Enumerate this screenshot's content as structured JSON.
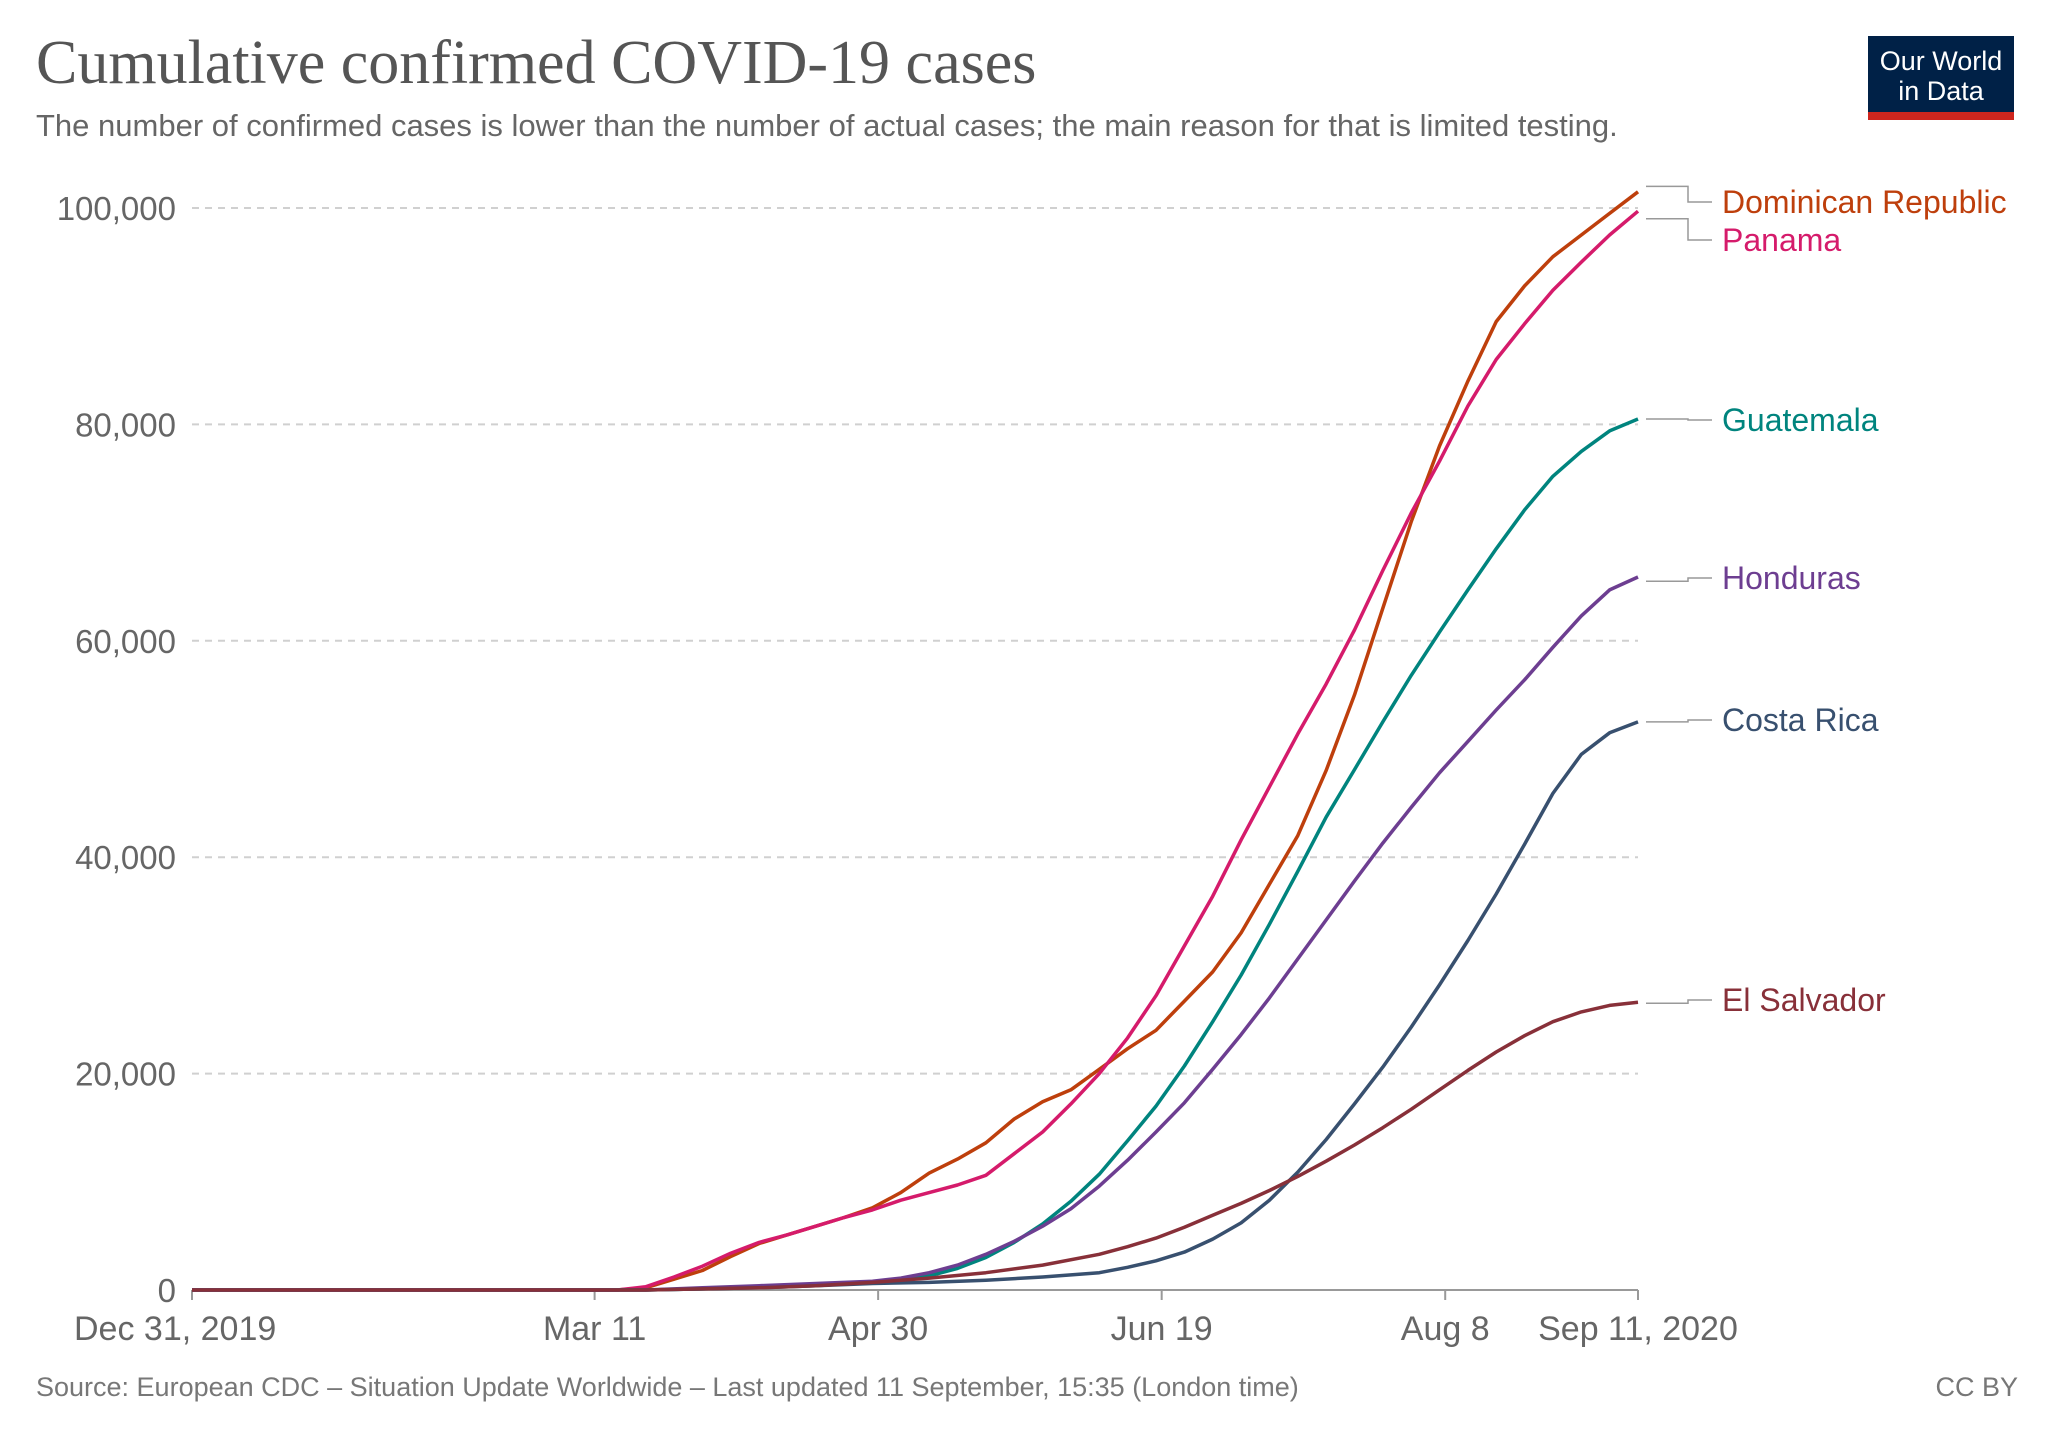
{
  "header": {
    "title": "Cumulative confirmed COVID-19 cases",
    "subtitle": "The number of confirmed cases is lower than the number of actual cases; the main reason for that is limited testing."
  },
  "logo": {
    "line1": "Our World",
    "line2": "in Data"
  },
  "footer": {
    "source": "Source: European CDC – Situation Update Worldwide – Last updated 11 September, 15:35 (London time)",
    "license": "CC BY"
  },
  "chart_data": {
    "type": "line",
    "title": "Cumulative confirmed COVID-19 cases",
    "subtitle": "The number of confirmed cases is lower than the number of actual cases; the main reason for that is limited testing.",
    "x_unit": "day index (0 = Dec 31, 2019)",
    "xlim": [
      0,
      255
    ],
    "ylim": [
      0,
      100000
    ],
    "x_ticks": [
      {
        "day": 0,
        "label": "Dec 31, 2019"
      },
      {
        "day": 71,
        "label": "Mar 11"
      },
      {
        "day": 121,
        "label": "Apr 30"
      },
      {
        "day": 171,
        "label": "Jun 19"
      },
      {
        "day": 221,
        "label": "Aug 8"
      },
      {
        "day": 255,
        "label": "Sep 11, 2020"
      }
    ],
    "y_ticks": [
      {
        "value": 0,
        "label": "0"
      },
      {
        "value": 20000,
        "label": "20,000"
      },
      {
        "value": 40000,
        "label": "40,000"
      },
      {
        "value": 60000,
        "label": "60,000"
      },
      {
        "value": 80000,
        "label": "80,000"
      },
      {
        "value": 100000,
        "label": "100,000"
      }
    ],
    "grid": "horizontal dashed",
    "legend": "right-side line labels",
    "series": [
      {
        "name": "Dominican Republic",
        "color": "#be3f0c",
        "label_value": 102000,
        "points": [
          [
            0,
            0
          ],
          [
            75,
            0
          ],
          [
            80,
            200
          ],
          [
            85,
            1000
          ],
          [
            90,
            1800
          ],
          [
            95,
            3100
          ],
          [
            100,
            4300
          ],
          [
            105,
            5100
          ],
          [
            110,
            5900
          ],
          [
            115,
            6700
          ],
          [
            120,
            7600
          ],
          [
            125,
            9000
          ],
          [
            130,
            10800
          ],
          [
            135,
            12100
          ],
          [
            140,
            13600
          ],
          [
            145,
            15800
          ],
          [
            150,
            17400
          ],
          [
            155,
            18500
          ],
          [
            160,
            20400
          ],
          [
            165,
            22300
          ],
          [
            170,
            24000
          ],
          [
            175,
            26700
          ],
          [
            180,
            29400
          ],
          [
            185,
            33000
          ],
          [
            190,
            37500
          ],
          [
            195,
            42000
          ],
          [
            200,
            48000
          ],
          [
            205,
            55000
          ],
          [
            210,
            63000
          ],
          [
            215,
            71000
          ],
          [
            220,
            78000
          ],
          [
            225,
            84000
          ],
          [
            230,
            89500
          ],
          [
            235,
            92800
          ],
          [
            240,
            95500
          ],
          [
            245,
            97500
          ],
          [
            250,
            99500
          ],
          [
            255,
            101500
          ]
        ]
      },
      {
        "name": "Panama",
        "color": "#d51b6b",
        "label_value": 99000,
        "points": [
          [
            0,
            0
          ],
          [
            75,
            0
          ],
          [
            80,
            300
          ],
          [
            85,
            1200
          ],
          [
            90,
            2200
          ],
          [
            95,
            3400
          ],
          [
            100,
            4400
          ],
          [
            105,
            5100
          ],
          [
            110,
            5900
          ],
          [
            115,
            6700
          ],
          [
            120,
            7400
          ],
          [
            125,
            8300
          ],
          [
            130,
            9000
          ],
          [
            135,
            9700
          ],
          [
            140,
            10600
          ],
          [
            145,
            12600
          ],
          [
            150,
            14600
          ],
          [
            155,
            17200
          ],
          [
            160,
            20000
          ],
          [
            165,
            23300
          ],
          [
            170,
            27200
          ],
          [
            175,
            31800
          ],
          [
            180,
            36400
          ],
          [
            185,
            41600
          ],
          [
            190,
            46500
          ],
          [
            195,
            51400
          ],
          [
            200,
            56000
          ],
          [
            205,
            61000
          ],
          [
            210,
            66500
          ],
          [
            215,
            71800
          ],
          [
            220,
            76600
          ],
          [
            225,
            81700
          ],
          [
            230,
            86000
          ],
          [
            235,
            89300
          ],
          [
            240,
            92400
          ],
          [
            245,
            95000
          ],
          [
            250,
            97500
          ],
          [
            255,
            99700
          ]
        ]
      },
      {
        "name": "Guatemala",
        "color": "#00847e",
        "label_value": 80500,
        "points": [
          [
            0,
            0
          ],
          [
            80,
            0
          ],
          [
            90,
            100
          ],
          [
            100,
            300
          ],
          [
            110,
            500
          ],
          [
            120,
            700
          ],
          [
            125,
            900
          ],
          [
            130,
            1300
          ],
          [
            135,
            2000
          ],
          [
            140,
            3000
          ],
          [
            145,
            4400
          ],
          [
            150,
            6100
          ],
          [
            155,
            8200
          ],
          [
            160,
            10700
          ],
          [
            165,
            13800
          ],
          [
            170,
            17000
          ],
          [
            175,
            20700
          ],
          [
            180,
            24800
          ],
          [
            185,
            29100
          ],
          [
            190,
            33800
          ],
          [
            195,
            38700
          ],
          [
            200,
            43700
          ],
          [
            205,
            48100
          ],
          [
            210,
            52500
          ],
          [
            215,
            56800
          ],
          [
            220,
            60800
          ],
          [
            225,
            64700
          ],
          [
            230,
            68500
          ],
          [
            235,
            72100
          ],
          [
            240,
            75200
          ],
          [
            245,
            77500
          ],
          [
            250,
            79400
          ],
          [
            255,
            80500
          ]
        ]
      },
      {
        "name": "Honduras",
        "color": "#6d3e91",
        "label_value": 65500,
        "points": [
          [
            0,
            0
          ],
          [
            80,
            0
          ],
          [
            90,
            200
          ],
          [
            100,
            400
          ],
          [
            110,
            600
          ],
          [
            120,
            800
          ],
          [
            125,
            1100
          ],
          [
            130,
            1600
          ],
          [
            135,
            2300
          ],
          [
            140,
            3300
          ],
          [
            145,
            4500
          ],
          [
            150,
            5900
          ],
          [
            155,
            7500
          ],
          [
            160,
            9600
          ],
          [
            165,
            12000
          ],
          [
            170,
            14600
          ],
          [
            175,
            17300
          ],
          [
            180,
            20400
          ],
          [
            185,
            23600
          ],
          [
            190,
            27000
          ],
          [
            195,
            30600
          ],
          [
            200,
            34200
          ],
          [
            205,
            37800
          ],
          [
            210,
            41300
          ],
          [
            215,
            44600
          ],
          [
            220,
            47800
          ],
          [
            225,
            50700
          ],
          [
            230,
            53600
          ],
          [
            235,
            56400
          ],
          [
            240,
            59400
          ],
          [
            245,
            62300
          ],
          [
            250,
            64700
          ],
          [
            255,
            65900
          ]
        ]
      },
      {
        "name": "Costa Rica",
        "color": "#38506f",
        "label_value": 52500,
        "points": [
          [
            0,
            0
          ],
          [
            80,
            0
          ],
          [
            90,
            100
          ],
          [
            100,
            200
          ],
          [
            110,
            400
          ],
          [
            120,
            600
          ],
          [
            130,
            700
          ],
          [
            140,
            900
          ],
          [
            150,
            1200
          ],
          [
            160,
            1600
          ],
          [
            165,
            2100
          ],
          [
            170,
            2700
          ],
          [
            175,
            3500
          ],
          [
            180,
            4700
          ],
          [
            185,
            6200
          ],
          [
            190,
            8300
          ],
          [
            195,
            10900
          ],
          [
            200,
            13900
          ],
          [
            205,
            17200
          ],
          [
            210,
            20600
          ],
          [
            215,
            24300
          ],
          [
            220,
            28200
          ],
          [
            225,
            32300
          ],
          [
            230,
            36600
          ],
          [
            235,
            41200
          ],
          [
            240,
            45900
          ],
          [
            245,
            49500
          ],
          [
            250,
            51500
          ],
          [
            255,
            52500
          ]
        ]
      },
      {
        "name": "El Salvador",
        "color": "#883039",
        "label_value": 26500,
        "points": [
          [
            0,
            0
          ],
          [
            80,
            0
          ],
          [
            90,
            100
          ],
          [
            100,
            200
          ],
          [
            110,
            400
          ],
          [
            120,
            700
          ],
          [
            130,
            1100
          ],
          [
            140,
            1600
          ],
          [
            150,
            2300
          ],
          [
            160,
            3300
          ],
          [
            165,
            4000
          ],
          [
            170,
            4800
          ],
          [
            175,
            5800
          ],
          [
            180,
            6900
          ],
          [
            185,
            8000
          ],
          [
            190,
            9200
          ],
          [
            195,
            10500
          ],
          [
            200,
            11900
          ],
          [
            205,
            13400
          ],
          [
            210,
            15000
          ],
          [
            215,
            16700
          ],
          [
            220,
            18500
          ],
          [
            225,
            20300
          ],
          [
            230,
            22000
          ],
          [
            235,
            23500
          ],
          [
            240,
            24800
          ],
          [
            245,
            25700
          ],
          [
            250,
            26300
          ],
          [
            255,
            26600
          ]
        ]
      }
    ]
  }
}
